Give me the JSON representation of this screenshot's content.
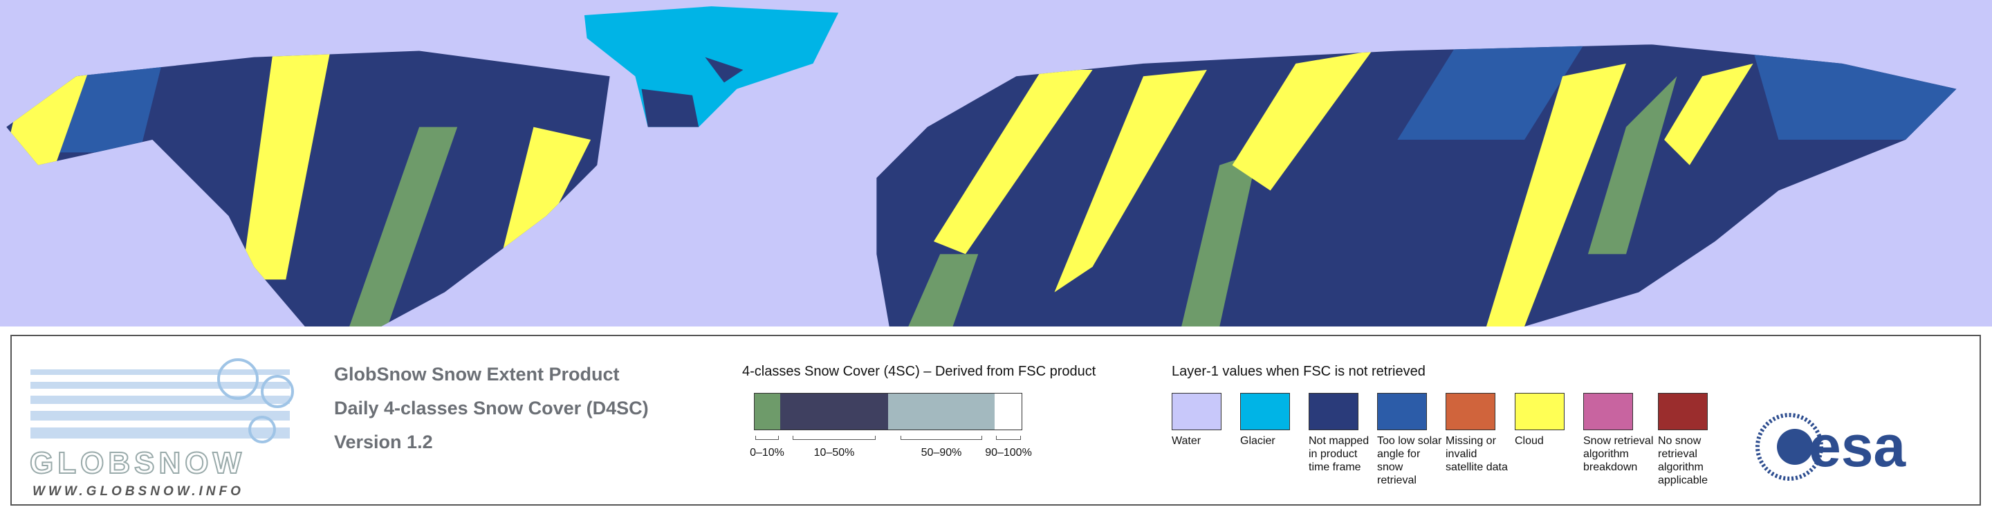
{
  "logo": {
    "name": "GLOBSNOW",
    "url": "WWW.GLOBSNOW.INFO"
  },
  "product": {
    "title": "GlobSnow Snow Extent Product",
    "subtitle": "Daily 4-classes Snow Cover (D4SC)",
    "version": "Version 1.2"
  },
  "snow_cover_legend": {
    "title": "4-classes Snow Cover (4SC) – Derived from FSC product",
    "classes": [
      {
        "label": "0–10%",
        "color": "#6e9b6a"
      },
      {
        "label": "10–50%",
        "color": "#3f4060"
      },
      {
        "label": "50–90%",
        "color": "#a3b9bf"
      },
      {
        "label": "90–100%",
        "color": "#ffffff"
      }
    ]
  },
  "layer1_legend": {
    "title": "Layer-1 values when FSC is not retrieved",
    "items": [
      {
        "label": "Water",
        "color": "#c8c8fa"
      },
      {
        "label": "Glacier",
        "color": "#00b4e6"
      },
      {
        "label": "Not mapped in product time frame",
        "color": "#2a3b7a"
      },
      {
        "label": "Too low solar angle for snow retrieval",
        "color": "#2c5ca8"
      },
      {
        "label": "Missing or invalid satellite data",
        "color": "#d0643c"
      },
      {
        "label": "Cloud",
        "color": "#ffff55"
      },
      {
        "label": "Snow retrieval algorithm breakdown",
        "color": "#c864a0"
      },
      {
        "label": "No snow retrieval algorithm applicable",
        "color": "#9b2d2d"
      }
    ]
  },
  "agency_logo": {
    "text": "esa"
  }
}
